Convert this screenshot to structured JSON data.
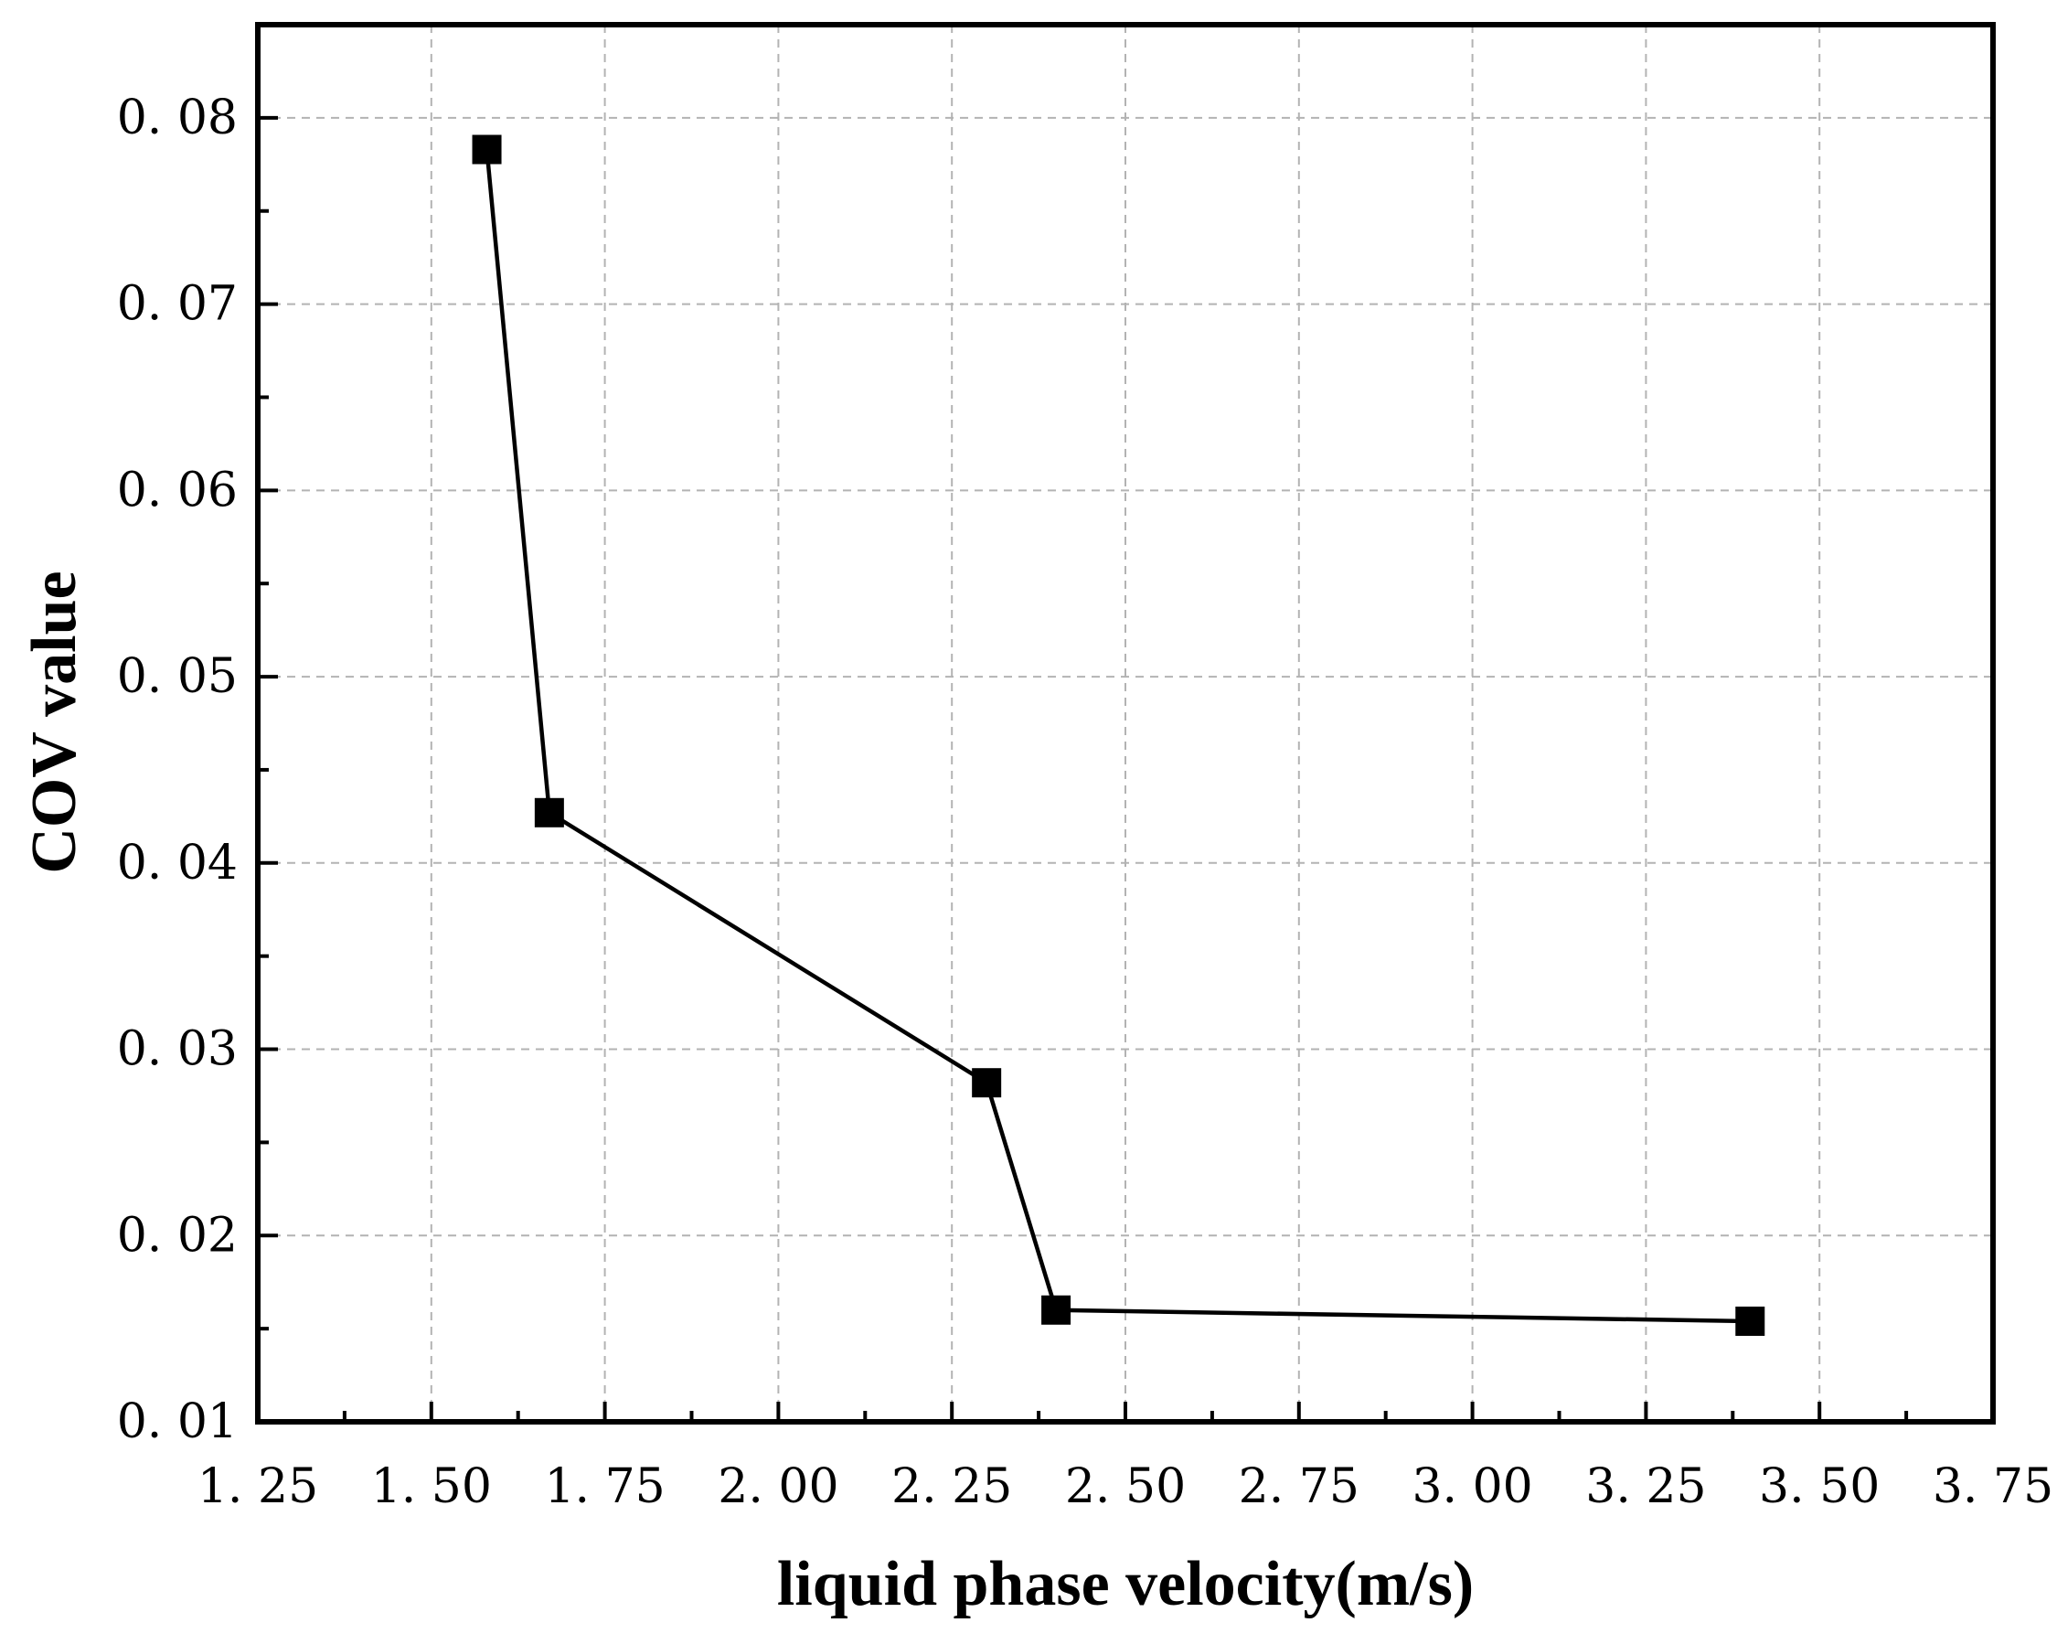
{
  "chart_data": {
    "type": "line",
    "title": "",
    "xlabel": "liquid phase velocity(m/s)",
    "ylabel": "COV value",
    "xlim": [
      1.25,
      3.75
    ],
    "ylim": [
      0.01,
      0.085
    ],
    "x_ticks": [
      "1. 25",
      "1. 50",
      "1. 75",
      "2. 00",
      "2. 25",
      "2. 50",
      "2. 75",
      "3. 00",
      "3. 25",
      "3. 50",
      "3. 75"
    ],
    "y_ticks": [
      "0. 01",
      "0. 02",
      "0. 03",
      "0. 04",
      "0. 05",
      "0. 06",
      "0. 07",
      "0. 08"
    ],
    "grid": true,
    "marker": "square",
    "series": [
      {
        "x": [
          1.58,
          1.67,
          2.3,
          2.4,
          3.4
        ],
        "values": [
          0.0783,
          0.0427,
          0.0282,
          0.016,
          0.0154
        ]
      }
    ],
    "colors": {
      "line": "#000000",
      "marker": "#000000",
      "grid": "#b3b3b3",
      "frame": "#000000"
    }
  }
}
